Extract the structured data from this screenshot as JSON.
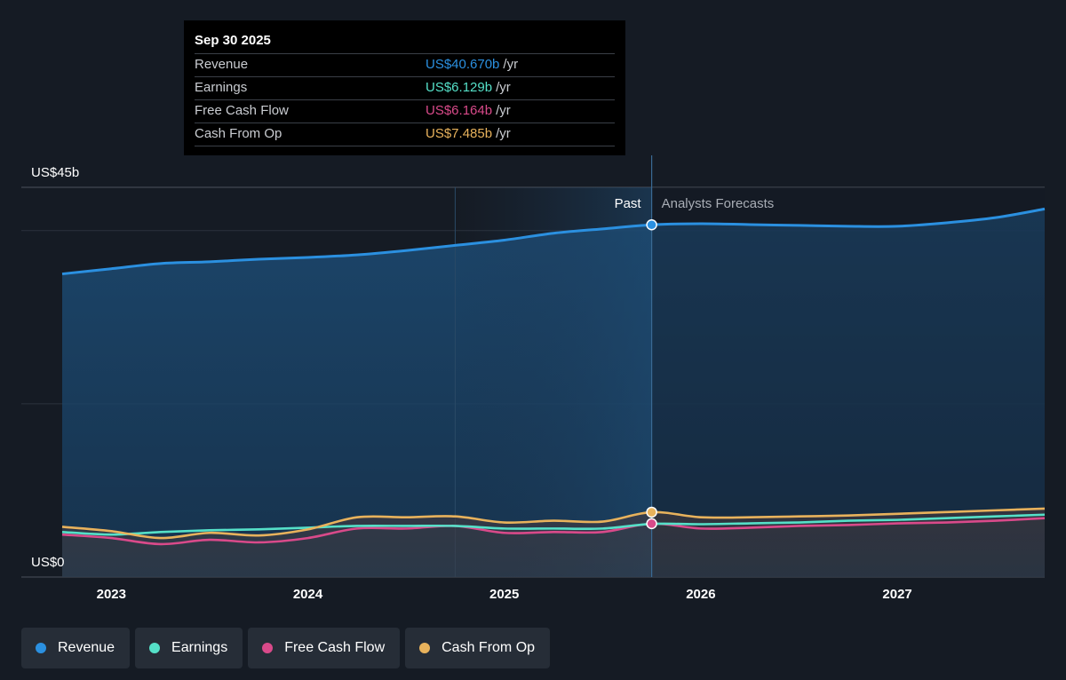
{
  "chart_data": {
    "type": "line",
    "y_axis_labels": {
      "top": "US$45b",
      "bottom": "US$0"
    },
    "ylim": [
      0,
      45
    ],
    "xlim": [
      2022.75,
      2027.75
    ],
    "x_ticks": [
      {
        "value": 2023,
        "label": "2023"
      },
      {
        "value": 2024,
        "label": "2024"
      },
      {
        "value": 2025,
        "label": "2025"
      },
      {
        "value": 2026,
        "label": "2026"
      },
      {
        "value": 2027,
        "label": "2027"
      }
    ],
    "regions": {
      "past_label": "Past",
      "forecast_label": "Analysts Forecasts",
      "divider_x": 2025.75,
      "highlight_start_x": 2024.75
    },
    "series": [
      {
        "name": "Revenue",
        "color": "#2b90e0",
        "points": [
          [
            2022.75,
            35.0
          ],
          [
            2023.0,
            35.6
          ],
          [
            2023.25,
            36.2
          ],
          [
            2023.5,
            36.4
          ],
          [
            2023.75,
            36.7
          ],
          [
            2024.0,
            36.9
          ],
          [
            2024.25,
            37.2
          ],
          [
            2024.5,
            37.7
          ],
          [
            2024.75,
            38.3
          ],
          [
            2025.0,
            38.9
          ],
          [
            2025.25,
            39.7
          ],
          [
            2025.5,
            40.2
          ],
          [
            2025.75,
            40.67
          ],
          [
            2026.0,
            40.8
          ],
          [
            2026.25,
            40.7
          ],
          [
            2026.5,
            40.6
          ],
          [
            2026.75,
            40.5
          ],
          [
            2027.0,
            40.5
          ],
          [
            2027.25,
            40.9
          ],
          [
            2027.5,
            41.5
          ],
          [
            2027.75,
            42.5
          ]
        ]
      },
      {
        "name": "Earnings",
        "color": "#55e0c8",
        "points": [
          [
            2022.75,
            5.2
          ],
          [
            2023.0,
            4.9
          ],
          [
            2023.25,
            5.2
          ],
          [
            2023.5,
            5.4
          ],
          [
            2023.75,
            5.5
          ],
          [
            2024.0,
            5.7
          ],
          [
            2024.25,
            5.9
          ],
          [
            2024.5,
            5.9
          ],
          [
            2024.75,
            5.9
          ],
          [
            2025.0,
            5.6
          ],
          [
            2025.25,
            5.6
          ],
          [
            2025.5,
            5.6
          ],
          [
            2025.75,
            6.129
          ],
          [
            2026.0,
            6.1
          ],
          [
            2026.25,
            6.2
          ],
          [
            2026.5,
            6.3
          ],
          [
            2026.75,
            6.5
          ],
          [
            2027.0,
            6.6
          ],
          [
            2027.25,
            6.8
          ],
          [
            2027.5,
            7.0
          ],
          [
            2027.75,
            7.2
          ]
        ]
      },
      {
        "name": "Free Cash Flow",
        "color": "#d94a8a",
        "points": [
          [
            2022.75,
            4.9
          ],
          [
            2023.0,
            4.5
          ],
          [
            2023.25,
            3.8
          ],
          [
            2023.5,
            4.3
          ],
          [
            2023.75,
            4.0
          ],
          [
            2024.0,
            4.5
          ],
          [
            2024.25,
            5.6
          ],
          [
            2024.5,
            5.6
          ],
          [
            2024.75,
            5.9
          ],
          [
            2025.0,
            5.1
          ],
          [
            2025.25,
            5.2
          ],
          [
            2025.5,
            5.2
          ],
          [
            2025.75,
            6.164
          ],
          [
            2026.0,
            5.6
          ],
          [
            2026.25,
            5.7
          ],
          [
            2026.5,
            5.9
          ],
          [
            2026.75,
            6.0
          ],
          [
            2027.0,
            6.2
          ],
          [
            2027.25,
            6.3
          ],
          [
            2027.5,
            6.5
          ],
          [
            2027.75,
            6.8
          ]
        ]
      },
      {
        "name": "Cash From Op",
        "color": "#e8b25c",
        "points": [
          [
            2022.75,
            5.8
          ],
          [
            2023.0,
            5.3
          ],
          [
            2023.25,
            4.5
          ],
          [
            2023.5,
            5.1
          ],
          [
            2023.75,
            4.8
          ],
          [
            2024.0,
            5.5
          ],
          [
            2024.25,
            6.9
          ],
          [
            2024.5,
            6.9
          ],
          [
            2024.75,
            7.0
          ],
          [
            2025.0,
            6.3
          ],
          [
            2025.25,
            6.5
          ],
          [
            2025.5,
            6.4
          ],
          [
            2025.75,
            7.485
          ],
          [
            2026.0,
            6.9
          ],
          [
            2026.25,
            6.9
          ],
          [
            2026.5,
            7.0
          ],
          [
            2026.75,
            7.1
          ],
          [
            2027.0,
            7.3
          ],
          [
            2027.25,
            7.5
          ],
          [
            2027.5,
            7.7
          ],
          [
            2027.75,
            7.9
          ]
        ]
      }
    ]
  },
  "tooltip": {
    "date": "Sep 30 2025",
    "unit": "/yr",
    "rows": [
      {
        "label": "Revenue",
        "value": "US$40.670b",
        "color": "#2b90e0"
      },
      {
        "label": "Earnings",
        "value": "US$6.129b",
        "color": "#55e0c8"
      },
      {
        "label": "Free Cash Flow",
        "value": "US$6.164b",
        "color": "#d94a8a"
      },
      {
        "label": "Cash From Op",
        "value": "US$7.485b",
        "color": "#e8b25c"
      }
    ]
  },
  "legend": [
    {
      "label": "Revenue",
      "color": "#2b90e0"
    },
    {
      "label": "Earnings",
      "color": "#55e0c8"
    },
    {
      "label": "Free Cash Flow",
      "color": "#d94a8a"
    },
    {
      "label": "Cash From Op",
      "color": "#e8b25c"
    }
  ]
}
